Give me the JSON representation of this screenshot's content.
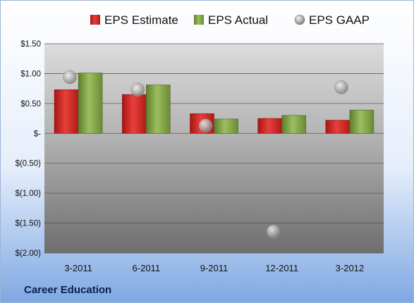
{
  "chart_data": {
    "type": "bar",
    "title": "",
    "company": "Career Education",
    "categories": [
      "3-2011",
      "6-2011",
      "9-2011",
      "12-2011",
      "3-2012"
    ],
    "series": [
      {
        "name": "EPS Estimate",
        "kind": "bar",
        "color": "#d42a2a",
        "values": [
          0.73,
          0.65,
          0.33,
          0.25,
          0.22
        ]
      },
      {
        "name": "EPS Actual",
        "kind": "bar",
        "color": "#86a84a",
        "values": [
          1.01,
          0.81,
          0.24,
          0.3,
          0.39
        ]
      },
      {
        "name": "EPS GAAP",
        "kind": "scatter",
        "color": "#b0b0b0",
        "values": [
          0.94,
          0.73,
          0.13,
          -1.64,
          0.77
        ]
      }
    ],
    "yticks": [
      1.5,
      1.0,
      0.5,
      0,
      -0.5,
      -1.0,
      -1.5,
      -2.0
    ],
    "ytick_labels": [
      "$1.50",
      "$1.00",
      "$0.50",
      "$-",
      "$(0.50)",
      "$(1.00)",
      "$(1.50)",
      "$(2.00)"
    ],
    "ylim": [
      -2.0,
      1.5
    ],
    "grid": true,
    "legend_position": "top"
  }
}
